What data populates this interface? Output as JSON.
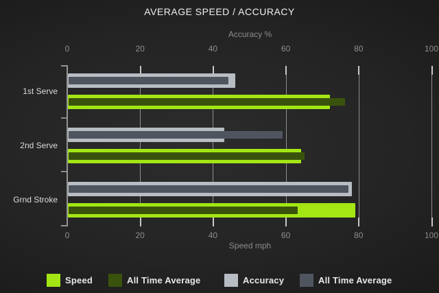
{
  "chart_data": {
    "type": "bar",
    "orientation": "horizontal",
    "title": "AVERAGE SPEED / ACCURACY",
    "categories": [
      "1st Serve",
      "2nd Serve",
      "Grnd Stroke"
    ],
    "top_axis": {
      "label": "Accuracy %",
      "ticks": [
        0,
        20,
        40,
        60,
        80,
        100
      ],
      "range": [
        0,
        100
      ]
    },
    "bottom_axis": {
      "label": "Speed mph",
      "ticks": [
        0,
        20,
        40,
        60,
        80,
        100
      ],
      "range": [
        0,
        100
      ]
    },
    "series": [
      {
        "name": "Speed",
        "axis": "bottom",
        "role": "outer",
        "color": "#a3e614",
        "values": [
          72,
          64,
          79
        ]
      },
      {
        "name": "All Time Average",
        "axis": "bottom",
        "role": "inner",
        "color": "#3a530c",
        "values": [
          76,
          65,
          63
        ]
      },
      {
        "name": "Accuracy",
        "axis": "top",
        "role": "outer",
        "color": "#b8bdc4",
        "values": [
          46,
          43,
          78
        ]
      },
      {
        "name": "All Time Average",
        "axis": "top",
        "role": "inner",
        "color": "#4f555f",
        "values": [
          44,
          59,
          77
        ]
      }
    ],
    "legend_position": "bottom",
    "grid": true
  }
}
